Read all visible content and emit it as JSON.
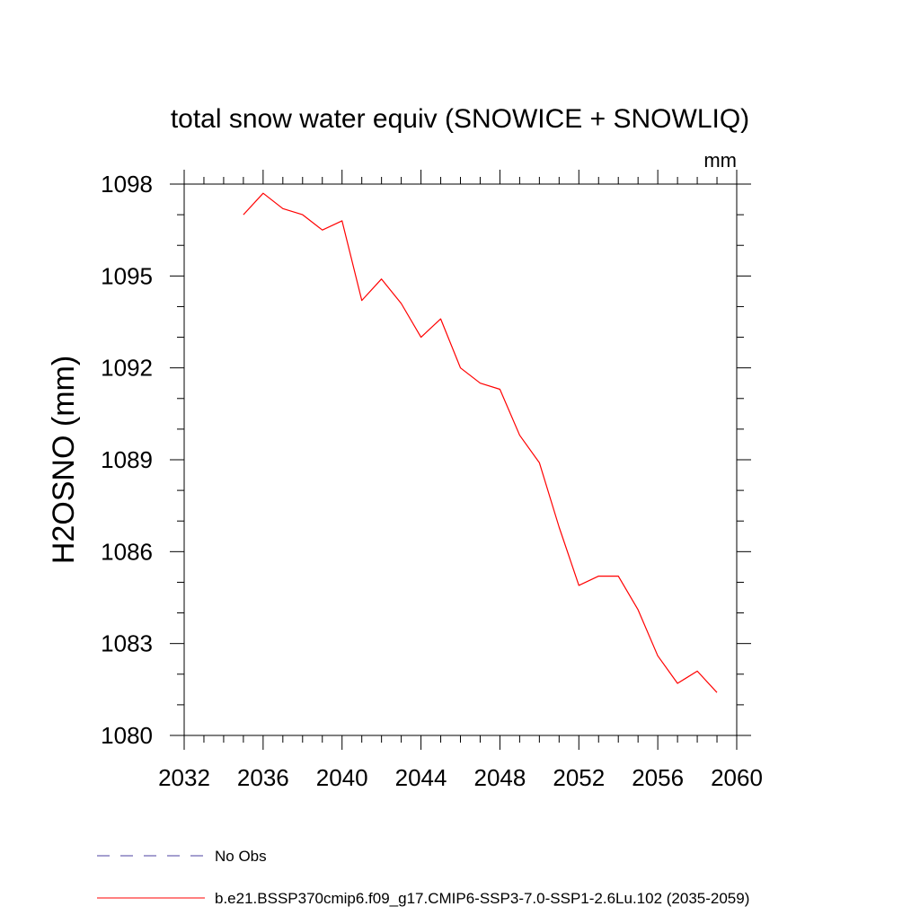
{
  "chart_data": {
    "type": "line",
    "title": "total snow water equiv (SNOWICE + SNOWLIQ)",
    "units": "mm",
    "ylabel": "H2OSNO  (mm)",
    "xlabel": "",
    "xlim": [
      2032,
      2060
    ],
    "ylim": [
      1080,
      1098
    ],
    "x_ticks": [
      2032,
      2036,
      2040,
      2044,
      2048,
      2052,
      2056,
      2060
    ],
    "y_ticks": [
      1080,
      1083,
      1086,
      1089,
      1092,
      1095,
      1098
    ],
    "x_minor_step": 1,
    "y_minor_step": 1,
    "legend_placement": "bottom",
    "series": [
      {
        "name": "b.e21.BSSP370cmip6.f09_g17.CMIP6-SSP3-7.0-SSP1-2.6Lu.102 (2035-2059)",
        "color": "#ff0000",
        "line_style": "solid",
        "x": [
          2035,
          2036,
          2037,
          2038,
          2039,
          2040,
          2041,
          2042,
          2043,
          2044,
          2045,
          2046,
          2047,
          2048,
          2049,
          2050,
          2051,
          2052,
          2053,
          2054,
          2055,
          2056,
          2057,
          2058,
          2059
        ],
        "values": [
          1097.0,
          1097.7,
          1097.2,
          1097.0,
          1096.5,
          1096.8,
          1094.2,
          1094.9,
          1094.1,
          1093.0,
          1093.6,
          1092.0,
          1091.5,
          1091.3,
          1089.8,
          1088.9,
          1086.8,
          1084.9,
          1085.2,
          1085.2,
          1084.1,
          1082.6,
          1081.7,
          1082.1,
          1081.4
        ]
      }
    ],
    "legend": [
      {
        "label": "No Obs",
        "color": "#4b3fa0",
        "line_style": "dashed"
      },
      {
        "label": "b.e21.BSSP370cmip6.f09_g17.CMIP6-SSP3-7.0-SSP1-2.6Lu.102 (2035-2059)",
        "color": "#ff0000",
        "line_style": "solid"
      }
    ]
  }
}
